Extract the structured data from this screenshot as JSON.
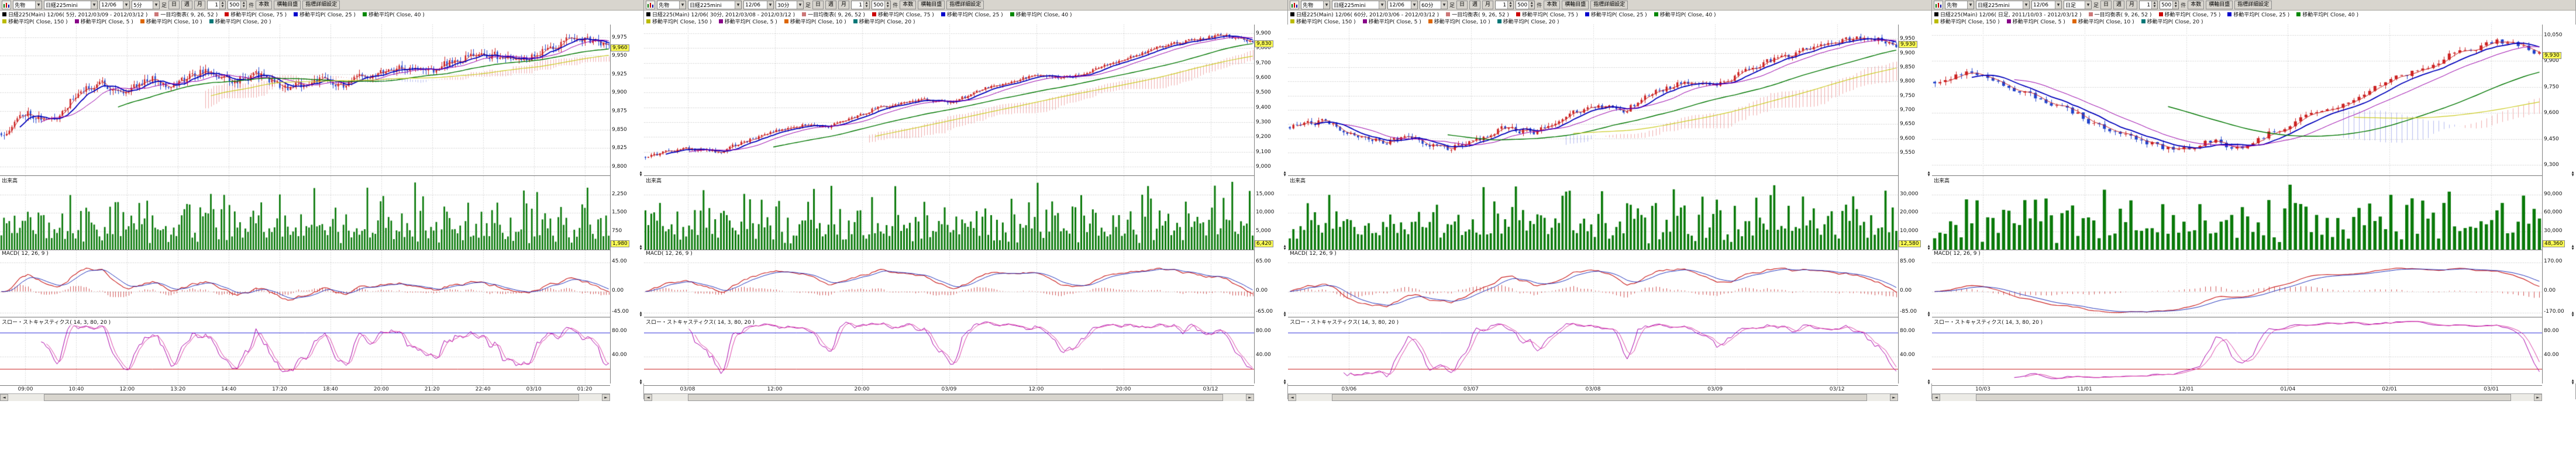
{
  "panels": [
    {
      "toolbar": {
        "market": "先物",
        "symbol": "日経225mini",
        "contract": "12/06",
        "interval": "5分",
        "ashi_label": "足",
        "day": "日",
        "week": "週",
        "month": "月",
        "step_value": "1",
        "bars_value": "500",
        "bars_unit": "件",
        "bars_btn": "本数",
        "axis_btn": "横軸目盛",
        "settings_btn": "指標詳細設定"
      },
      "legend1": [
        {
          "t": "日経225(Main) 12/06( 5分, 2012/03/09 - 2012/03/12 )",
          "c": "#000000"
        },
        {
          "t": "一目均衡表( 9, 26, 52 )",
          "c": "#cc7777"
        },
        {
          "t": "移動平均P( Close, 75 )",
          "c": "#cc0000"
        },
        {
          "t": "移動平均P( Close, 25 )",
          "c": "#0000cc"
        },
        {
          "t": "移動平均P( Close, 40 )",
          "c": "#008800"
        }
      ],
      "legend2": [
        {
          "t": "移動平均P( Close, 150 )",
          "c": "#bbbb00"
        },
        {
          "t": "移動平均P( Close, 5 )",
          "c": "#880088"
        },
        {
          "t": "移動平均P( Close, 10 )",
          "c": "#dd6600"
        },
        {
          "t": "移動平均P( Close, 20 )",
          "c": "#007777"
        }
      ],
      "sections": {
        "volume_label": "出来高",
        "macd_label": "MACD( 12, 26, 9 )",
        "stoch_label": "スロー・ストキャスティクス( 14, 3, 80, 20 )"
      },
      "price_axis": {
        "min": 9788,
        "max": 9992,
        "current": {
          "t": "9,960",
          "v": 9960
        },
        "ticks": [
          {
            "t": "9,975",
            "v": 9975
          },
          {
            "t": "9,950",
            "v": 9950
          },
          {
            "t": "9,925",
            "v": 9925
          },
          {
            "t": "9,900",
            "v": 9900
          },
          {
            "t": "9,875",
            "v": 9875
          },
          {
            "t": "9,850",
            "v": 9850
          },
          {
            "t": "9,825",
            "v": 9825
          },
          {
            "t": "9,800",
            "v": 9800
          }
        ]
      },
      "volume_axis": {
        "ticks": [
          "2,250",
          "1,500",
          "750"
        ],
        "current": "1,980"
      },
      "macd_axis": {
        "ticks": [
          {
            "t": "45.00",
            "f": 0.18
          },
          {
            "t": "0.00",
            "f": 0.62
          },
          {
            "t": "-45.00",
            "f": 0.94
          }
        ]
      },
      "stoch_axis": {
        "ticks": [
          {
            "t": "80.00",
            "f": 0.22
          },
          {
            "t": "40.00",
            "f": 0.58
          }
        ]
      },
      "x_labels": [
        "09:00",
        "10:40",
        "12:00",
        "13:20",
        "14:40",
        "17:20",
        "18:40",
        "20:00",
        "21:20",
        "22:40",
        "03/10",
        "01:20"
      ],
      "chart": {
        "seed": 11,
        "n": 230,
        "noise": 7,
        "keypoints": [
          [
            0,
            9845
          ],
          [
            0.04,
            9875
          ],
          [
            0.08,
            9860
          ],
          [
            0.12,
            9895
          ],
          [
            0.16,
            9915
          ],
          [
            0.2,
            9900
          ],
          [
            0.24,
            9920
          ],
          [
            0.28,
            9910
          ],
          [
            0.33,
            9930
          ],
          [
            0.38,
            9915
          ],
          [
            0.42,
            9925
          ],
          [
            0.47,
            9905
          ],
          [
            0.52,
            9918
          ],
          [
            0.56,
            9908
          ],
          [
            0.6,
            9925
          ],
          [
            0.65,
            9935
          ],
          [
            0.7,
            9928
          ],
          [
            0.75,
            9945
          ],
          [
            0.8,
            9952
          ],
          [
            0.85,
            9940
          ],
          [
            0.9,
            9962
          ],
          [
            0.95,
            9975
          ],
          [
            1,
            9960
          ]
        ]
      }
    },
    {
      "toolbar": {
        "market": "先物",
        "symbol": "日経225mini",
        "contract": "12/06",
        "interval": "30分",
        "ashi_label": "足",
        "day": "日",
        "week": "週",
        "month": "月",
        "step_value": "1",
        "bars_value": "500",
        "bars_unit": "件",
        "bars_btn": "本数",
        "axis_btn": "横軸目盛",
        "settings_btn": "指標詳細設定"
      },
      "legend1": [
        {
          "t": "日経225(Main) 12/06( 30分, 2012/03/08 - 2012/03/12 )",
          "c": "#000000"
        },
        {
          "t": "一目均衡表( 9, 26, 52 )",
          "c": "#cc7777"
        },
        {
          "t": "移動平均P( Close, 75 )",
          "c": "#cc0000"
        },
        {
          "t": "移動平均P( Close, 25 )",
          "c": "#0000cc"
        },
        {
          "t": "移動平均P( Close, 40 )",
          "c": "#008800"
        }
      ],
      "legend2": [
        {
          "t": "移動平均P( Close, 150 )",
          "c": "#bbbb00"
        },
        {
          "t": "移動平均P( Close, 5 )",
          "c": "#880088"
        },
        {
          "t": "移動平均P( Close, 10 )",
          "c": "#dd6600"
        },
        {
          "t": "移動平均P( Close, 20 )",
          "c": "#007777"
        }
      ],
      "sections": {
        "volume_label": "出来高",
        "macd_label": "MACD( 12, 26, 9 )",
        "stoch_label": "スロー・ストキャスティクス( 14, 3, 80, 20 )"
      },
      "price_axis": {
        "min": 8940,
        "max": 9960,
        "current": {
          "t": "9,830",
          "v": 9830
        },
        "ticks": [
          {
            "t": "9,900",
            "v": 9900
          },
          {
            "t": "9,800",
            "v": 9800
          },
          {
            "t": "9,700",
            "v": 9700
          },
          {
            "t": "9,600",
            "v": 9600
          },
          {
            "t": "9,500",
            "v": 9500
          },
          {
            "t": "9,400",
            "v": 9400
          },
          {
            "t": "9,300",
            "v": 9300
          },
          {
            "t": "9,200",
            "v": 9200
          },
          {
            "t": "9,100",
            "v": 9100
          },
          {
            "t": "9,000",
            "v": 9000
          }
        ]
      },
      "volume_axis": {
        "ticks": [
          "15,000",
          "10,000",
          "5,000"
        ],
        "current": "6,420"
      },
      "macd_axis": {
        "ticks": [
          {
            "t": "65.00",
            "f": 0.18
          },
          {
            "t": "0.00",
            "f": 0.62
          },
          {
            "t": "-65.00",
            "f": 0.94
          }
        ]
      },
      "stoch_axis": {
        "ticks": [
          {
            "t": "80.00",
            "f": 0.22
          },
          {
            "t": "40.00",
            "f": 0.58
          }
        ]
      },
      "x_labels": [
        "03/08",
        "12:00",
        "20:00",
        "03/09",
        "12:00",
        "20:00",
        "03/12"
      ],
      "chart": {
        "seed": 22,
        "n": 210,
        "noise": 16,
        "keypoints": [
          [
            0,
            9065
          ],
          [
            0.06,
            9120
          ],
          [
            0.12,
            9100
          ],
          [
            0.2,
            9230
          ],
          [
            0.26,
            9290
          ],
          [
            0.3,
            9270
          ],
          [
            0.38,
            9400
          ],
          [
            0.44,
            9450
          ],
          [
            0.5,
            9430
          ],
          [
            0.58,
            9560
          ],
          [
            0.64,
            9620
          ],
          [
            0.7,
            9600
          ],
          [
            0.78,
            9720
          ],
          [
            0.84,
            9800
          ],
          [
            0.9,
            9860
          ],
          [
            0.95,
            9890
          ],
          [
            0.98,
            9855
          ],
          [
            1,
            9830
          ]
        ]
      }
    },
    {
      "toolbar": {
        "market": "先物",
        "symbol": "日経225mini",
        "contract": "12/06",
        "interval": "60分",
        "ashi_label": "足",
        "day": "日",
        "week": "週",
        "month": "月",
        "step_value": "1",
        "bars_value": "500",
        "bars_unit": "件",
        "bars_btn": "本数",
        "axis_btn": "横軸目盛",
        "settings_btn": "指標詳細設定"
      },
      "legend1": [
        {
          "t": "日経225(Main) 12/06( 60分, 2012/03/06 - 2012/03/12 )",
          "c": "#000000"
        },
        {
          "t": "一目均衡表( 9, 26, 52 )",
          "c": "#cc7777"
        },
        {
          "t": "移動平均P( Close, 75 )",
          "c": "#cc0000"
        },
        {
          "t": "移動平均P( Close, 25 )",
          "c": "#0000cc"
        },
        {
          "t": "移動平均P( Close, 40 )",
          "c": "#008800"
        }
      ],
      "legend2": [
        {
          "t": "移動平均P( Close, 150 )",
          "c": "#bbbb00"
        },
        {
          "t": "移動平均P( Close, 5 )",
          "c": "#880088"
        },
        {
          "t": "移動平均P( Close, 10 )",
          "c": "#dd6600"
        },
        {
          "t": "移動平均P( Close, 20 )",
          "c": "#007777"
        }
      ],
      "sections": {
        "volume_label": "出来高",
        "macd_label": "MACD( 12, 26, 9 )",
        "stoch_label": "スロー・ストキャスティクス( 14, 3, 80, 20 )"
      },
      "price_axis": {
        "min": 9470,
        "max": 10000,
        "current": {
          "t": "9,930",
          "v": 9930
        },
        "ticks": [
          {
            "t": "9,950",
            "v": 9950
          },
          {
            "t": "9,900",
            "v": 9900
          },
          {
            "t": "9,850",
            "v": 9850
          },
          {
            "t": "9,800",
            "v": 9800
          },
          {
            "t": "9,750",
            "v": 9750
          },
          {
            "t": "9,700",
            "v": 9700
          },
          {
            "t": "9,650",
            "v": 9650
          },
          {
            "t": "9,600",
            "v": 9600
          },
          {
            "t": "9,550",
            "v": 9550
          }
        ]
      },
      "volume_axis": {
        "ticks": [
          "30,000",
          "20,000",
          "10,000"
        ],
        "current": "12,580"
      },
      "macd_axis": {
        "ticks": [
          {
            "t": "85.00",
            "f": 0.18
          },
          {
            "t": "0.00",
            "f": 0.62
          },
          {
            "t": "-85.00",
            "f": 0.94
          }
        ]
      },
      "stoch_axis": {
        "ticks": [
          {
            "t": "80.00",
            "f": 0.22
          },
          {
            "t": "40.00",
            "f": 0.58
          }
        ]
      },
      "x_labels": [
        "03/06",
        "03/07",
        "03/08",
        "03/09",
        "03/12"
      ],
      "chart": {
        "seed": 33,
        "n": 170,
        "noise": 13,
        "keypoints": [
          [
            0,
            9640
          ],
          [
            0.05,
            9660
          ],
          [
            0.1,
            9620
          ],
          [
            0.15,
            9585
          ],
          [
            0.2,
            9605
          ],
          [
            0.25,
            9560
          ],
          [
            0.3,
            9590
          ],
          [
            0.35,
            9640
          ],
          [
            0.4,
            9620
          ],
          [
            0.45,
            9680
          ],
          [
            0.5,
            9720
          ],
          [
            0.55,
            9700
          ],
          [
            0.6,
            9760
          ],
          [
            0.65,
            9800
          ],
          [
            0.7,
            9780
          ],
          [
            0.75,
            9840
          ],
          [
            0.8,
            9880
          ],
          [
            0.85,
            9910
          ],
          [
            0.9,
            9940
          ],
          [
            0.95,
            9955
          ],
          [
            1,
            9930
          ]
        ]
      }
    },
    {
      "toolbar": {
        "market": "先物",
        "symbol": "日経225mini",
        "contract": "12/06",
        "interval": "日足",
        "ashi_label": "足",
        "day": "日",
        "week": "週",
        "month": "月",
        "step_value": "1",
        "bars_value": "500",
        "bars_unit": "件",
        "bars_btn": "本数",
        "axis_btn": "横軸目盛",
        "settings_btn": "指標詳細設定"
      },
      "legend1": [
        {
          "t": "日経225(Main) 12/06( 日足, 2011/10/03 - 2012/03/12 )",
          "c": "#000000"
        },
        {
          "t": "一目均衡表( 9, 26, 52 )",
          "c": "#cc7777"
        },
        {
          "t": "移動平均P( Close, 75 )",
          "c": "#cc0000"
        },
        {
          "t": "移動平均P( Close, 25 )",
          "c": "#0000cc"
        },
        {
          "t": "移動平均P( Close, 40 )",
          "c": "#008800"
        }
      ],
      "legend2": [
        {
          "t": "移動平均P( Close, 150 )",
          "c": "#bbbb00"
        },
        {
          "t": "移動平均P( Close, 5 )",
          "c": "#880088"
        },
        {
          "t": "移動平均P( Close, 10 )",
          "c": "#dd6600"
        },
        {
          "t": "移動平均P( Close, 20 )",
          "c": "#007777"
        }
      ],
      "sections": {
        "volume_label": "出来高",
        "macd_label": "MACD( 12, 26, 9 )",
        "stoch_label": "スロー・ストキャスティクス( 14, 3, 80, 20 )"
      },
      "price_axis": {
        "min": 9240,
        "max": 10110,
        "current": {
          "t": "9,930",
          "v": 9930
        },
        "ticks": [
          {
            "t": "10,050",
            "v": 10050
          },
          {
            "t": "9,900",
            "v": 9900
          },
          {
            "t": "9,750",
            "v": 9750
          },
          {
            "t": "9,600",
            "v": 9600
          },
          {
            "t": "9,450",
            "v": 9450
          },
          {
            "t": "9,300",
            "v": 9300
          }
        ]
      },
      "volume_axis": {
        "ticks": [
          "90,000",
          "60,000",
          "30,000"
        ],
        "current": "48,360"
      },
      "macd_axis": {
        "ticks": [
          {
            "t": "170.00",
            "f": 0.18
          },
          {
            "t": "0.00",
            "f": 0.62
          },
          {
            "t": "-170.00",
            "f": 0.94
          }
        ]
      },
      "stoch_axis": {
        "ticks": [
          {
            "t": "80.00",
            "f": 0.22
          },
          {
            "t": "40.00",
            "f": 0.58
          }
        ]
      },
      "x_labels": [
        "10/03",
        "11/01",
        "12/01",
        "01/04",
        "02/01",
        "03/01"
      ],
      "chart": {
        "seed": 44,
        "n": 115,
        "noise": 24,
        "keypoints": [
          [
            0,
            9780
          ],
          [
            0.05,
            9850
          ],
          [
            0.1,
            9800
          ],
          [
            0.15,
            9700
          ],
          [
            0.2,
            9640
          ],
          [
            0.25,
            9560
          ],
          [
            0.3,
            9480
          ],
          [
            0.35,
            9420
          ],
          [
            0.4,
            9380
          ],
          [
            0.45,
            9440
          ],
          [
            0.5,
            9400
          ],
          [
            0.55,
            9480
          ],
          [
            0.6,
            9560
          ],
          [
            0.65,
            9620
          ],
          [
            0.7,
            9700
          ],
          [
            0.75,
            9780
          ],
          [
            0.8,
            9860
          ],
          [
            0.85,
            9940
          ],
          [
            0.9,
            9990
          ],
          [
            0.95,
            10020
          ],
          [
            1,
            9930
          ]
        ]
      }
    }
  ]
}
